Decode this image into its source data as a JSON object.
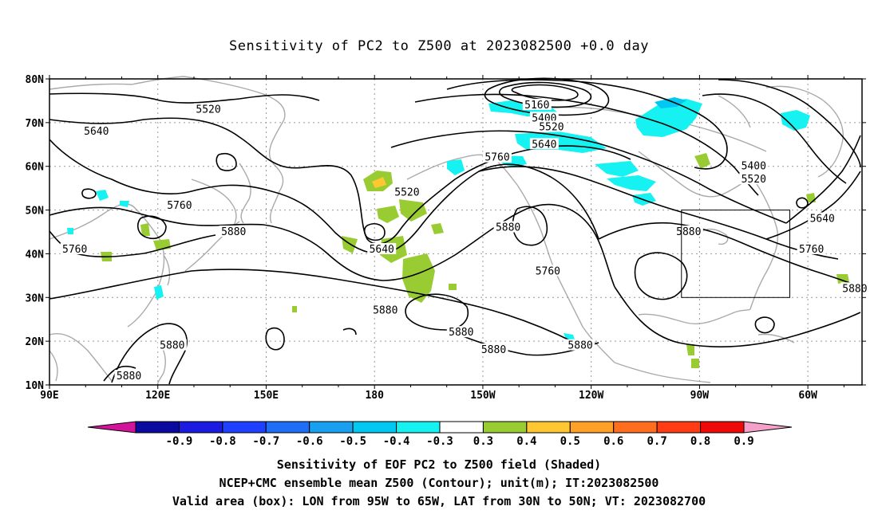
{
  "title": "Sensitivity of PC2 to Z500 at 2023082500 +0.0 day",
  "map": {
    "lon_labels": [
      "90E",
      "120E",
      "150E",
      "180",
      "150W",
      "120W",
      "90W",
      "60W"
    ],
    "lat_labels": [
      "80N",
      "70N",
      "60N",
      "50N",
      "40N",
      "30N",
      "20N",
      "10N"
    ],
    "extent": {
      "lon_min": 90,
      "lon_max": 315,
      "lat_min": 10,
      "lat_max": 80
    },
    "contour_labels": [
      {
        "text": "5520",
        "lon": 134,
        "lat": 73
      },
      {
        "text": "5640",
        "lon": 103,
        "lat": 68
      },
      {
        "text": "5160",
        "lon": 225,
        "lat": 74
      },
      {
        "text": "5400",
        "lon": 227,
        "lat": 71
      },
      {
        "text": "5520",
        "lon": 229,
        "lat": 69
      },
      {
        "text": "5640",
        "lon": 227,
        "lat": 65
      },
      {
        "text": "5760",
        "lon": 214,
        "lat": 62
      },
      {
        "text": "5520",
        "lon": 189,
        "lat": 54
      },
      {
        "text": "5760",
        "lon": 126,
        "lat": 51
      },
      {
        "text": "5880",
        "lon": 141,
        "lat": 45
      },
      {
        "text": "5760",
        "lon": 97,
        "lat": 41
      },
      {
        "text": "5640",
        "lon": 182,
        "lat": 41
      },
      {
        "text": "5880",
        "lon": 217,
        "lat": 46
      },
      {
        "text": "5760",
        "lon": 228,
        "lat": 36
      },
      {
        "text": "5880",
        "lon": 267,
        "lat": 45
      },
      {
        "text": "5400",
        "lon": 285,
        "lat": 60
      },
      {
        "text": "5520",
        "lon": 285,
        "lat": 57
      },
      {
        "text": "5640",
        "lon": 304,
        "lat": 48
      },
      {
        "text": "5760",
        "lon": 301,
        "lat": 41
      },
      {
        "text": "5880",
        "lon": 313,
        "lat": 32
      },
      {
        "text": "5880",
        "lon": 183,
        "lat": 27
      },
      {
        "text": "5880",
        "lon": 204,
        "lat": 22
      },
      {
        "text": "5880",
        "lon": 124,
        "lat": 19
      },
      {
        "text": "5880",
        "lon": 237,
        "lat": 19
      },
      {
        "text": "5880",
        "lon": 213,
        "lat": 18
      },
      {
        "text": "5880",
        "lon": 112,
        "lat": 12
      }
    ],
    "valid_box": {
      "lon_min": 265,
      "lon_max": 295,
      "lat_min": 30,
      "lat_max": 50
    }
  },
  "colorbar": {
    "labels": [
      "-0.9",
      "-0.8",
      "-0.7",
      "-0.6",
      "-0.5",
      "-0.4",
      "-0.3",
      "0.3",
      "0.4",
      "0.5",
      "0.6",
      "0.7",
      "0.8",
      "0.9"
    ],
    "colors": [
      "#0a0aa0",
      "#1a1ae0",
      "#2040ff",
      "#1e6ff5",
      "#1aa0f0",
      "#00c8f0",
      "#16f2f2",
      "#ffffff",
      "#99cc33",
      "#ffc832",
      "#ffa028",
      "#ff6e1e",
      "#ff3c14",
      "#ee0a0a"
    ],
    "low_arrow_color": "#d2149b",
    "high_arrow_color": "#f5a0c8"
  },
  "captions": {
    "line1": "Sensitivity of EOF PC2 to Z500 field (Shaded)",
    "line2": "NCEP+CMC ensemble mean Z500 (Contour); unit(m); IT:2023082500",
    "line3": "Valid area (box): LON from 95W to 65W, LAT from 30N to 50N; VT: 2023082700"
  }
}
